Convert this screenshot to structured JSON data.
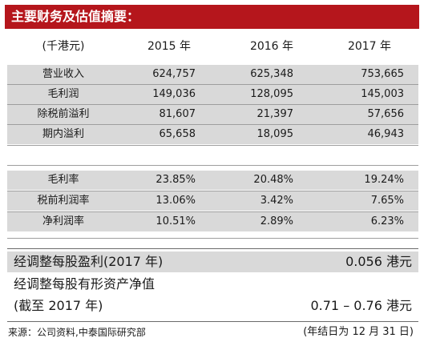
{
  "title": "主要财务及估值摘要：",
  "header": {
    "unit": "(千港元)",
    "years": [
      "2015 年",
      "2016 年",
      "2017 年"
    ]
  },
  "table_top": [
    {
      "label": "营业收入",
      "values": [
        "624,757",
        "625,348",
        "753,665"
      ]
    },
    {
      "label": "毛利润",
      "values": [
        "149,036",
        "128,095",
        "145,003"
      ]
    },
    {
      "label": "除税前溢利",
      "values": [
        "81,607",
        "21,397",
        "57,656"
      ]
    },
    {
      "label": "期内溢利",
      "values": [
        "65,658",
        "18,095",
        "46,943"
      ]
    }
  ],
  "table_ratios": [
    {
      "label": "毛利率",
      "values": [
        "23.85%",
        "20.48%",
        "19.24%"
      ]
    },
    {
      "label": "税前利润率",
      "values": [
        "13.06%",
        "3.42%",
        "7.65%"
      ]
    },
    {
      "label": "净利润率",
      "values": [
        "10.51%",
        "2.89%",
        "6.23%"
      ]
    }
  ],
  "eps": {
    "label": "经调整每股盈利(2017 年)",
    "value": "0.056 港元"
  },
  "nav": {
    "label_line1": "经调整每股有形资产净值",
    "label_line2": "(截至 2017 年)",
    "value": "0.71 – 0.76 港元"
  },
  "footer": {
    "source": "来源：公司资料,中泰国际研究部",
    "note": "(年结日为 12 月 31 日)"
  },
  "colors": {
    "title_bg": "#b5161c",
    "row_bg": "#d9d9d9"
  }
}
